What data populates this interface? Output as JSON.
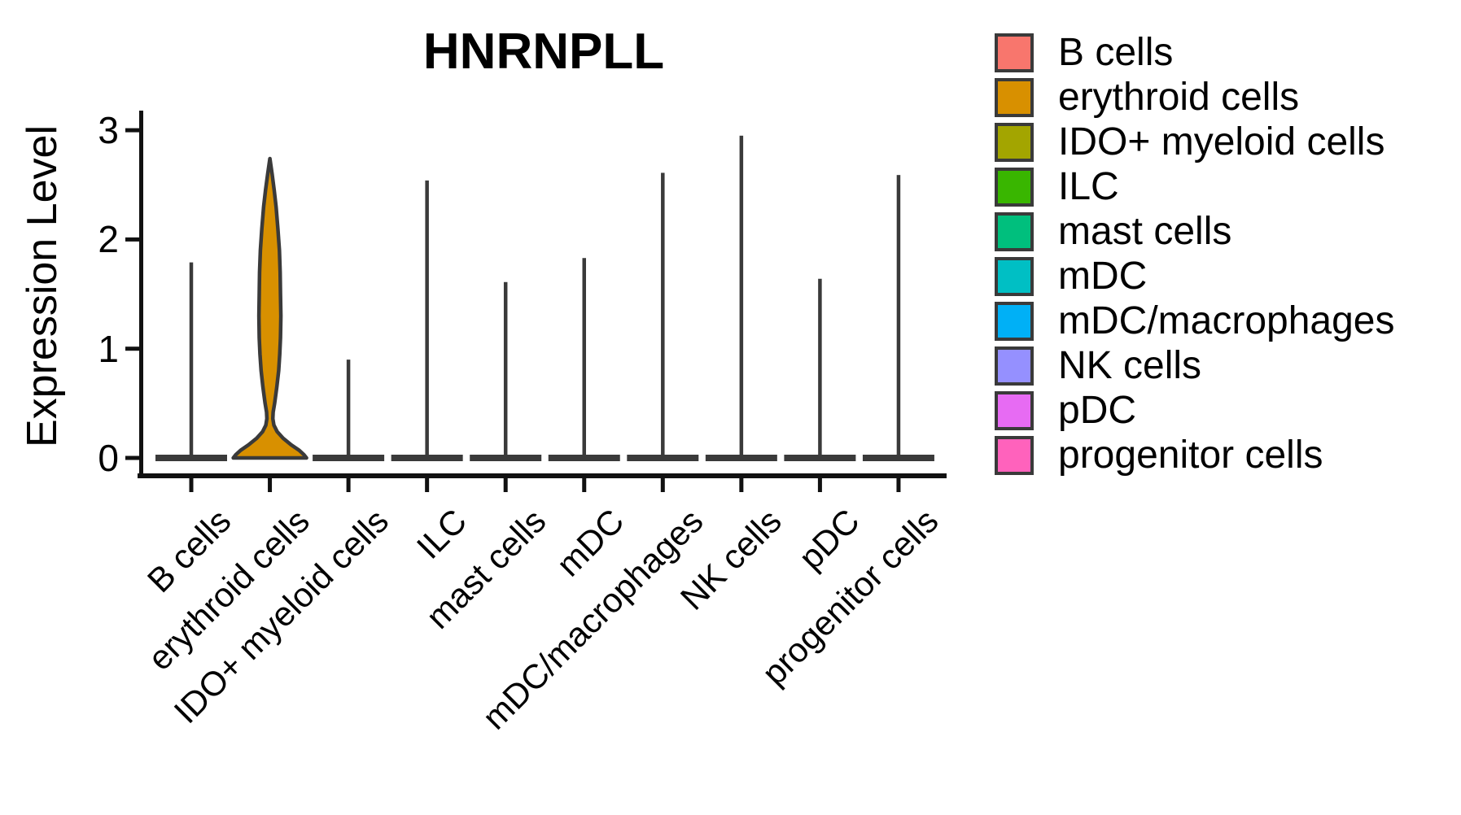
{
  "chart_data": {
    "type": "violin",
    "title": "HNRNPLL",
    "ylabel": "Expression Level",
    "ylim": [
      0,
      3
    ],
    "yticks": [
      0,
      1,
      2,
      3
    ],
    "grid": false,
    "legend_position": "right",
    "categories": [
      "B cells",
      "erythroid cells",
      "IDO+ myeloid cells",
      "ILC",
      "mast cells",
      "mDC",
      "mDC/macrophages",
      "NK cells",
      "pDC",
      "progenitor cells"
    ],
    "series": [
      {
        "name": "B cells",
        "color": "#F8766D",
        "max_expression": 1.79,
        "bulk_at_zero": true
      },
      {
        "name": "erythroid cells",
        "color": "#D89000",
        "max_expression": 2.74,
        "bulk_at_zero": false,
        "density_profile": [
          [
            2.74,
            0
          ],
          [
            2.6,
            0.06
          ],
          [
            2.45,
            0.12
          ],
          [
            2.3,
            0.17
          ],
          [
            2.1,
            0.22
          ],
          [
            1.9,
            0.26
          ],
          [
            1.7,
            0.28
          ],
          [
            1.5,
            0.29
          ],
          [
            1.3,
            0.3
          ],
          [
            1.1,
            0.29
          ],
          [
            0.95,
            0.27
          ],
          [
            0.8,
            0.24
          ],
          [
            0.65,
            0.19
          ],
          [
            0.5,
            0.13
          ],
          [
            0.42,
            0.09
          ],
          [
            0.36,
            0.08
          ],
          [
            0.3,
            0.11
          ],
          [
            0.24,
            0.2
          ],
          [
            0.18,
            0.36
          ],
          [
            0.12,
            0.58
          ],
          [
            0.07,
            0.8
          ],
          [
            0.03,
            0.93
          ],
          [
            0.0,
            1.0
          ]
        ]
      },
      {
        "name": "IDO+ myeloid cells",
        "color": "#A3A500",
        "max_expression": 0.9,
        "bulk_at_zero": true
      },
      {
        "name": "ILC",
        "color": "#39B600",
        "max_expression": 2.54,
        "bulk_at_zero": true
      },
      {
        "name": "mast cells",
        "color": "#00BF7D",
        "max_expression": 1.61,
        "bulk_at_zero": true
      },
      {
        "name": "mDC",
        "color": "#00BFC4",
        "max_expression": 1.83,
        "bulk_at_zero": true
      },
      {
        "name": "mDC/macrophages",
        "color": "#00B0F6",
        "max_expression": 2.61,
        "bulk_at_zero": true
      },
      {
        "name": "NK cells",
        "color": "#9590FF",
        "max_expression": 2.95,
        "bulk_at_zero": true
      },
      {
        "name": "pDC",
        "color": "#E76BF3",
        "max_expression": 1.64,
        "bulk_at_zero": true
      },
      {
        "name": "progenitor cells",
        "color": "#FF62BC",
        "max_expression": 2.59,
        "bulk_at_zero": true
      }
    ],
    "styles": {
      "violin_outline": "#3A3A3A",
      "axis_color": "#111111",
      "background": "#FFFFFF"
    }
  }
}
